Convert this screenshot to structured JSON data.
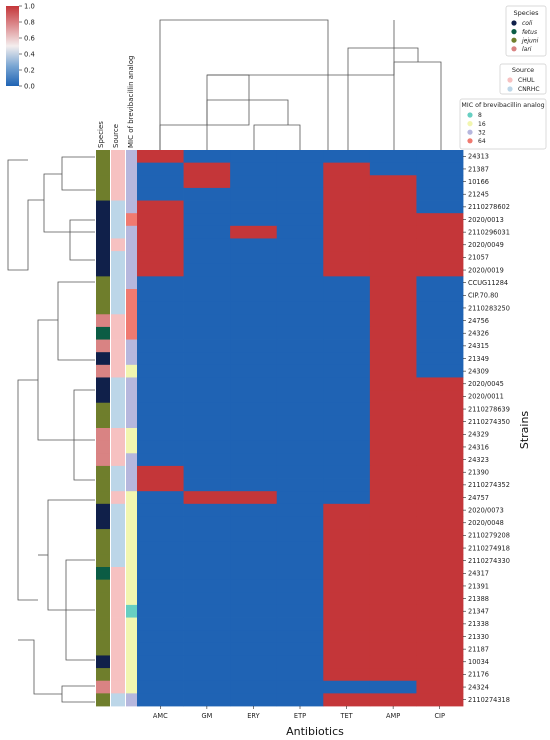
{
  "chart_data": {
    "type": "heatmap",
    "xlabel": "Antibiotics",
    "ylabel": "Strains",
    "columns": [
      "AMC",
      "GM",
      "ERY",
      "ETP",
      "TET",
      "AMP",
      "CIP"
    ],
    "rows": [
      "24313",
      "21387",
      "10166",
      "21245",
      "2110278602",
      "2020/0013",
      "2110296031",
      "2020/0049",
      "21057",
      "2020/0019",
      "CCUG11284",
      "CIP.70.80",
      "2110283250",
      "24756",
      "24326",
      "24315",
      "21349",
      "24309",
      "2020/0045",
      "2020/0011",
      "2110278639",
      "2110274350",
      "24329",
      "24316",
      "24323",
      "21390",
      "2110274352",
      "24757",
      "2020/0073",
      "2020/0048",
      "2110279208",
      "2110274918",
      "2110274330",
      "24317",
      "21391",
      "21388",
      "21347",
      "21338",
      "21330",
      "21187",
      "10034",
      "21176",
      "24324",
      "2110274318"
    ],
    "values": [
      [
        1,
        0,
        0,
        0,
        0,
        0,
        0
      ],
      [
        0,
        1,
        0,
        0,
        1,
        0,
        0
      ],
      [
        0,
        1,
        0,
        0,
        1,
        1,
        0
      ],
      [
        0,
        0,
        0,
        0,
        1,
        1,
        0
      ],
      [
        1,
        0,
        0,
        0,
        1,
        1,
        0
      ],
      [
        1,
        0,
        0,
        0,
        1,
        1,
        1
      ],
      [
        1,
        0,
        1,
        0,
        1,
        1,
        1
      ],
      [
        1,
        0,
        0,
        0,
        1,
        1,
        1
      ],
      [
        1,
        0,
        0,
        0,
        1,
        1,
        1
      ],
      [
        1,
        0,
        0,
        0,
        1,
        1,
        1
      ],
      [
        0,
        0,
        0,
        0,
        0,
        1,
        0
      ],
      [
        0,
        0,
        0,
        0,
        0,
        1,
        0
      ],
      [
        0,
        0,
        0,
        0,
        0,
        1,
        0
      ],
      [
        0,
        0,
        0,
        0,
        0,
        1,
        0
      ],
      [
        0,
        0,
        0,
        0,
        0,
        1,
        0
      ],
      [
        0,
        0,
        0,
        0,
        0,
        1,
        0
      ],
      [
        0,
        0,
        0,
        0,
        0,
        1,
        0
      ],
      [
        0,
        0,
        0,
        0,
        0,
        1,
        0
      ],
      [
        0,
        0,
        0,
        0,
        0,
        1,
        1
      ],
      [
        0,
        0,
        0,
        0,
        0,
        1,
        1
      ],
      [
        0,
        0,
        0,
        0,
        0,
        1,
        1
      ],
      [
        0,
        0,
        0,
        0,
        0,
        1,
        1
      ],
      [
        0,
        0,
        0,
        0,
        0,
        1,
        1
      ],
      [
        0,
        0,
        0,
        0,
        0,
        1,
        1
      ],
      [
        0,
        0,
        0,
        0,
        0,
        1,
        1
      ],
      [
        1,
        0,
        0,
        0,
        0,
        1,
        1
      ],
      [
        1,
        0,
        0,
        0,
        0,
        1,
        1
      ],
      [
        0,
        1,
        1,
        0,
        0,
        1,
        1
      ],
      [
        0,
        0,
        0,
        0,
        1,
        1,
        1
      ],
      [
        0,
        0,
        0,
        0,
        1,
        1,
        1
      ],
      [
        0,
        0,
        0,
        0,
        1,
        1,
        1
      ],
      [
        0,
        0,
        0,
        0,
        1,
        1,
        1
      ],
      [
        0,
        0,
        0,
        0,
        1,
        1,
        1
      ],
      [
        0,
        0,
        0,
        0,
        1,
        1,
        1
      ],
      [
        0,
        0,
        0,
        0,
        1,
        1,
        1
      ],
      [
        0,
        0,
        0,
        0,
        1,
        1,
        1
      ],
      [
        0,
        0,
        0,
        0,
        1,
        1,
        1
      ],
      [
        0,
        0,
        0,
        0,
        1,
        1,
        1
      ],
      [
        0,
        0,
        0,
        0,
        1,
        1,
        1
      ],
      [
        0,
        0,
        0,
        0,
        1,
        1,
        1
      ],
      [
        0,
        0,
        0,
        0,
        1,
        1,
        1
      ],
      [
        0,
        0,
        0,
        0,
        1,
        1,
        1
      ],
      [
        0,
        0,
        0,
        0,
        0,
        0,
        1
      ],
      [
        0,
        0,
        0,
        0,
        1,
        1,
        1
      ]
    ],
    "row_colors": {
      "labels": [
        "Species",
        "Source",
        "MIC of brevibacillin analog"
      ],
      "species": [
        "jejuni",
        "jejuni",
        "jejuni",
        "jejuni",
        "coli",
        "coli",
        "coli",
        "coli",
        "coli",
        "coli",
        "jejuni",
        "jejuni",
        "jejuni",
        "lari",
        "fetus",
        "lari",
        "coli",
        "lari",
        "coli",
        "coli",
        "jejuni",
        "jejuni",
        "lari",
        "lari",
        "lari",
        "jejuni",
        "jejuni",
        "jejuni",
        "coli",
        "coli",
        "jejuni",
        "jejuni",
        "jejuni",
        "fetus",
        "jejuni",
        "jejuni",
        "jejuni",
        "jejuni",
        "jejuni",
        "jejuni",
        "coli",
        "jejuni",
        "lari",
        "jejuni"
      ],
      "source": [
        "CHUL",
        "CHUL",
        "CHUL",
        "CHUL",
        "CNRHC",
        "CNRHC",
        "CNRHC",
        "CHUL",
        "CNRHC",
        "CNRHC",
        "CNRHC",
        "CNRHC",
        "CNRHC",
        "CHUL",
        "CHUL",
        "CHUL",
        "CHUL",
        "CHUL",
        "CNRHC",
        "CNRHC",
        "CNRHC",
        "CNRHC",
        "CHUL",
        "CHUL",
        "CHUL",
        "CNRHC",
        "CNRHC",
        "CHUL",
        "CNRHC",
        "CNRHC",
        "CNRHC",
        "CNRHC",
        "CNRHC",
        "CHUL",
        "CHUL",
        "CHUL",
        "CHUL",
        "CHUL",
        "CHUL",
        "CHUL",
        "CHUL",
        "CHUL",
        "CHUL",
        "CNRHC"
      ],
      "mic": [
        32,
        32,
        32,
        32,
        32,
        64,
        32,
        32,
        32,
        32,
        32,
        64,
        64,
        64,
        64,
        32,
        32,
        16,
        32,
        32,
        32,
        32,
        16,
        16,
        32,
        32,
        32,
        16,
        16,
        16,
        16,
        16,
        16,
        16,
        16,
        16,
        8,
        16,
        16,
        16,
        16,
        16,
        16,
        32
      ]
    },
    "colorbar": {
      "min": 0.0,
      "max": 1.0,
      "ticks": [
        "0.0",
        "0.2",
        "0.4",
        "0.6",
        "0.8",
        "1.0"
      ],
      "colormap": "vlag (blue-white-red)"
    },
    "legends": {
      "species": {
        "title": "Species",
        "entries": [
          "coli",
          "fetus",
          "jejuni",
          "lari"
        ],
        "italic": true
      },
      "source": {
        "title": "Source",
        "entries": [
          "CHUL",
          "CNRHC"
        ]
      },
      "mic": {
        "title": "MIC of brevibacillin analog",
        "entries": [
          "8",
          "16",
          "32",
          "64"
        ]
      }
    },
    "colors": {
      "heat_low": "#1f63b4",
      "heat_high": "#c43639",
      "species": {
        "coli": "#10204a",
        "fetus": "#0b5c44",
        "jejuni": "#6f7e2c",
        "lari": "#d98383"
      },
      "source": {
        "CHUL": "#f6c1c1",
        "CNRHC": "#bcd6e8"
      },
      "mic": {
        "8": "#67cfc2",
        "16": "#f2f6b0",
        "32": "#b6b7dd",
        "64": "#f07a70"
      }
    }
  }
}
